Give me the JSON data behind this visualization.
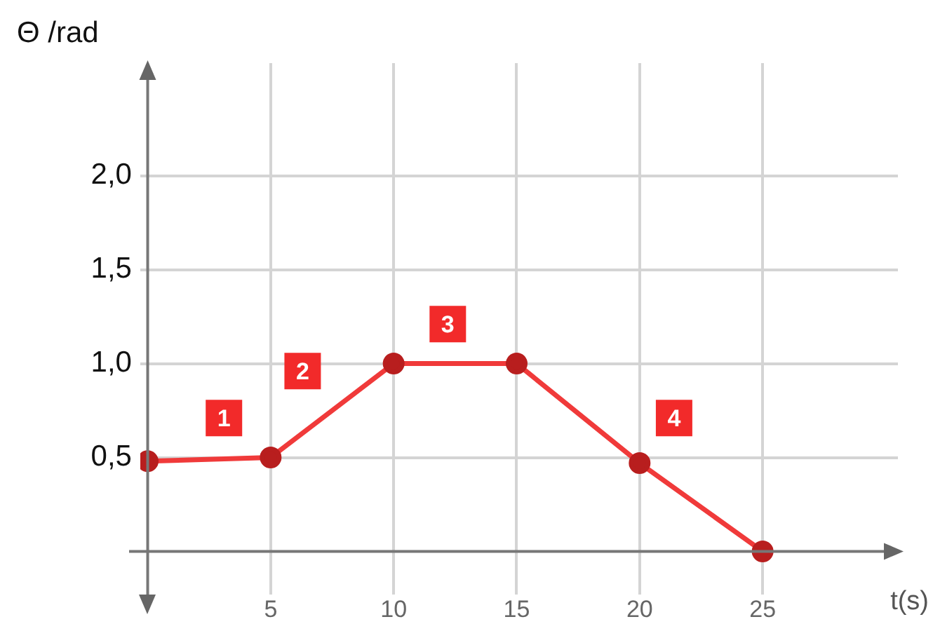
{
  "chart_data": {
    "type": "line",
    "xlabel": "t(s)",
    "ylabel": "Θ /rad",
    "x": [
      0,
      5,
      10,
      15,
      20,
      25
    ],
    "series": [
      {
        "color": "#f03a3a",
        "values": [
          0.48,
          0.5,
          1.0,
          1.0,
          0.47,
          0
        ]
      }
    ],
    "xlim": [
      -0.3,
      30.5
    ],
    "xticks": [
      5,
      10,
      15,
      20,
      25
    ],
    "ylim": [
      -0.2,
      2.6
    ],
    "yticks": [
      {
        "value": 0.5,
        "label": "0,5"
      },
      {
        "value": 1.0,
        "label": "1,0"
      },
      {
        "value": 1.5,
        "label": "1,5"
      },
      {
        "value": 2.0,
        "label": "2,0"
      }
    ],
    "grid": true,
    "legend": false,
    "marker": "circle",
    "line_style": "solid",
    "annotations": [
      {
        "text": "1",
        "x": 3.1,
        "y": 0.71
      },
      {
        "text": "2",
        "x": 6.3,
        "y": 0.96
      },
      {
        "text": "3",
        "x": 12.2,
        "y": 1.21
      },
      {
        "text": "4",
        "x": 21.4,
        "y": 0.71
      }
    ]
  }
}
